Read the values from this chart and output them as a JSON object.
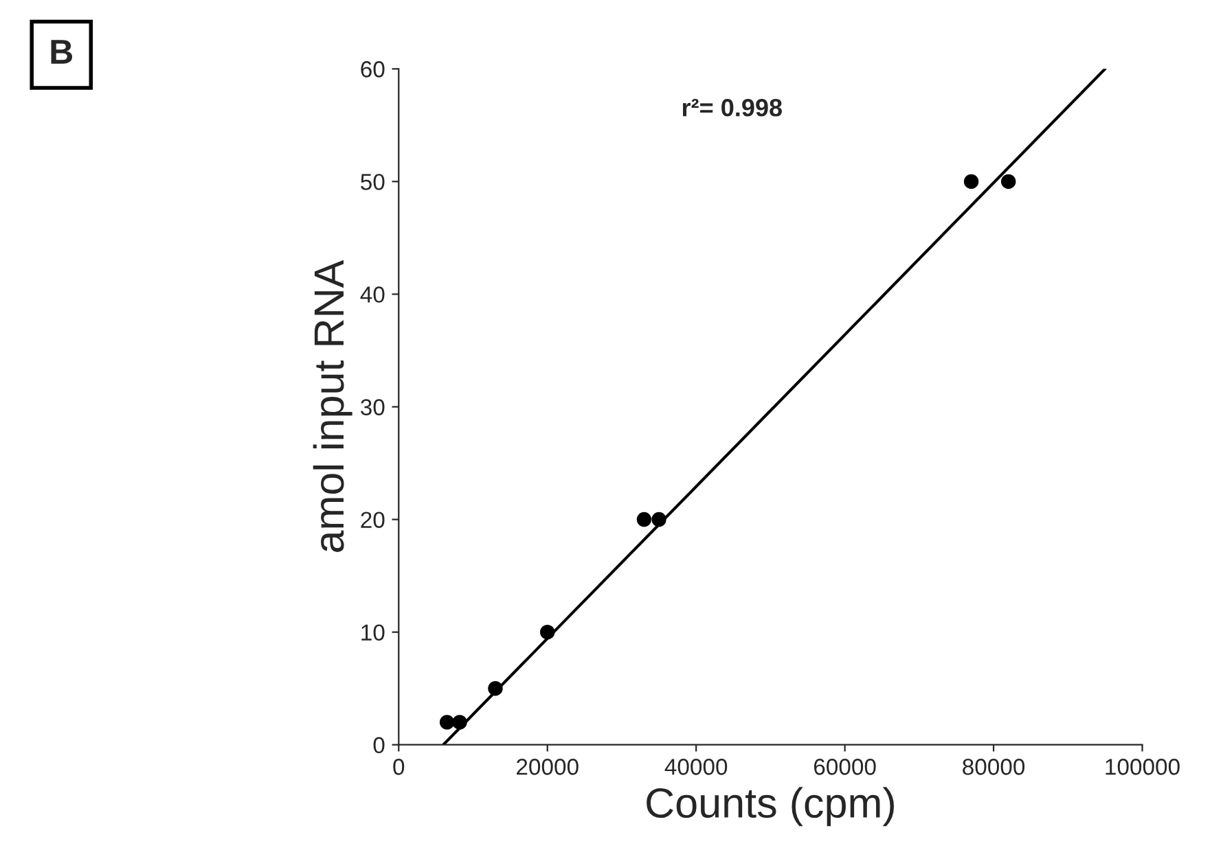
{
  "chart_data": {
    "type": "scatter",
    "xlabel": "Counts (cpm)",
    "ylabel": "amol input RNA",
    "annotations": [
      "B",
      "r²= 0.998"
    ],
    "series": [
      {
        "type": "scatter",
        "color": "#000000",
        "marker": "circle",
        "x": [
          6500,
          8200,
          13000,
          20000,
          33000,
          35000,
          77000,
          82000
        ],
        "values": [
          2,
          2,
          5,
          10,
          20,
          20,
          50,
          50
        ]
      },
      {
        "type": "line",
        "color": "#000000",
        "x": [
          6000,
          95000
        ],
        "values": [
          0,
          60
        ]
      }
    ],
    "xlim": [
      0,
      100000
    ],
    "ylim": [
      0,
      60
    ],
    "xticks": [
      0,
      20000,
      40000,
      60000,
      80000,
      100000
    ],
    "yticks": [
      0,
      10,
      20,
      30,
      40,
      50,
      60
    ],
    "grid": false,
    "legend": false
  }
}
